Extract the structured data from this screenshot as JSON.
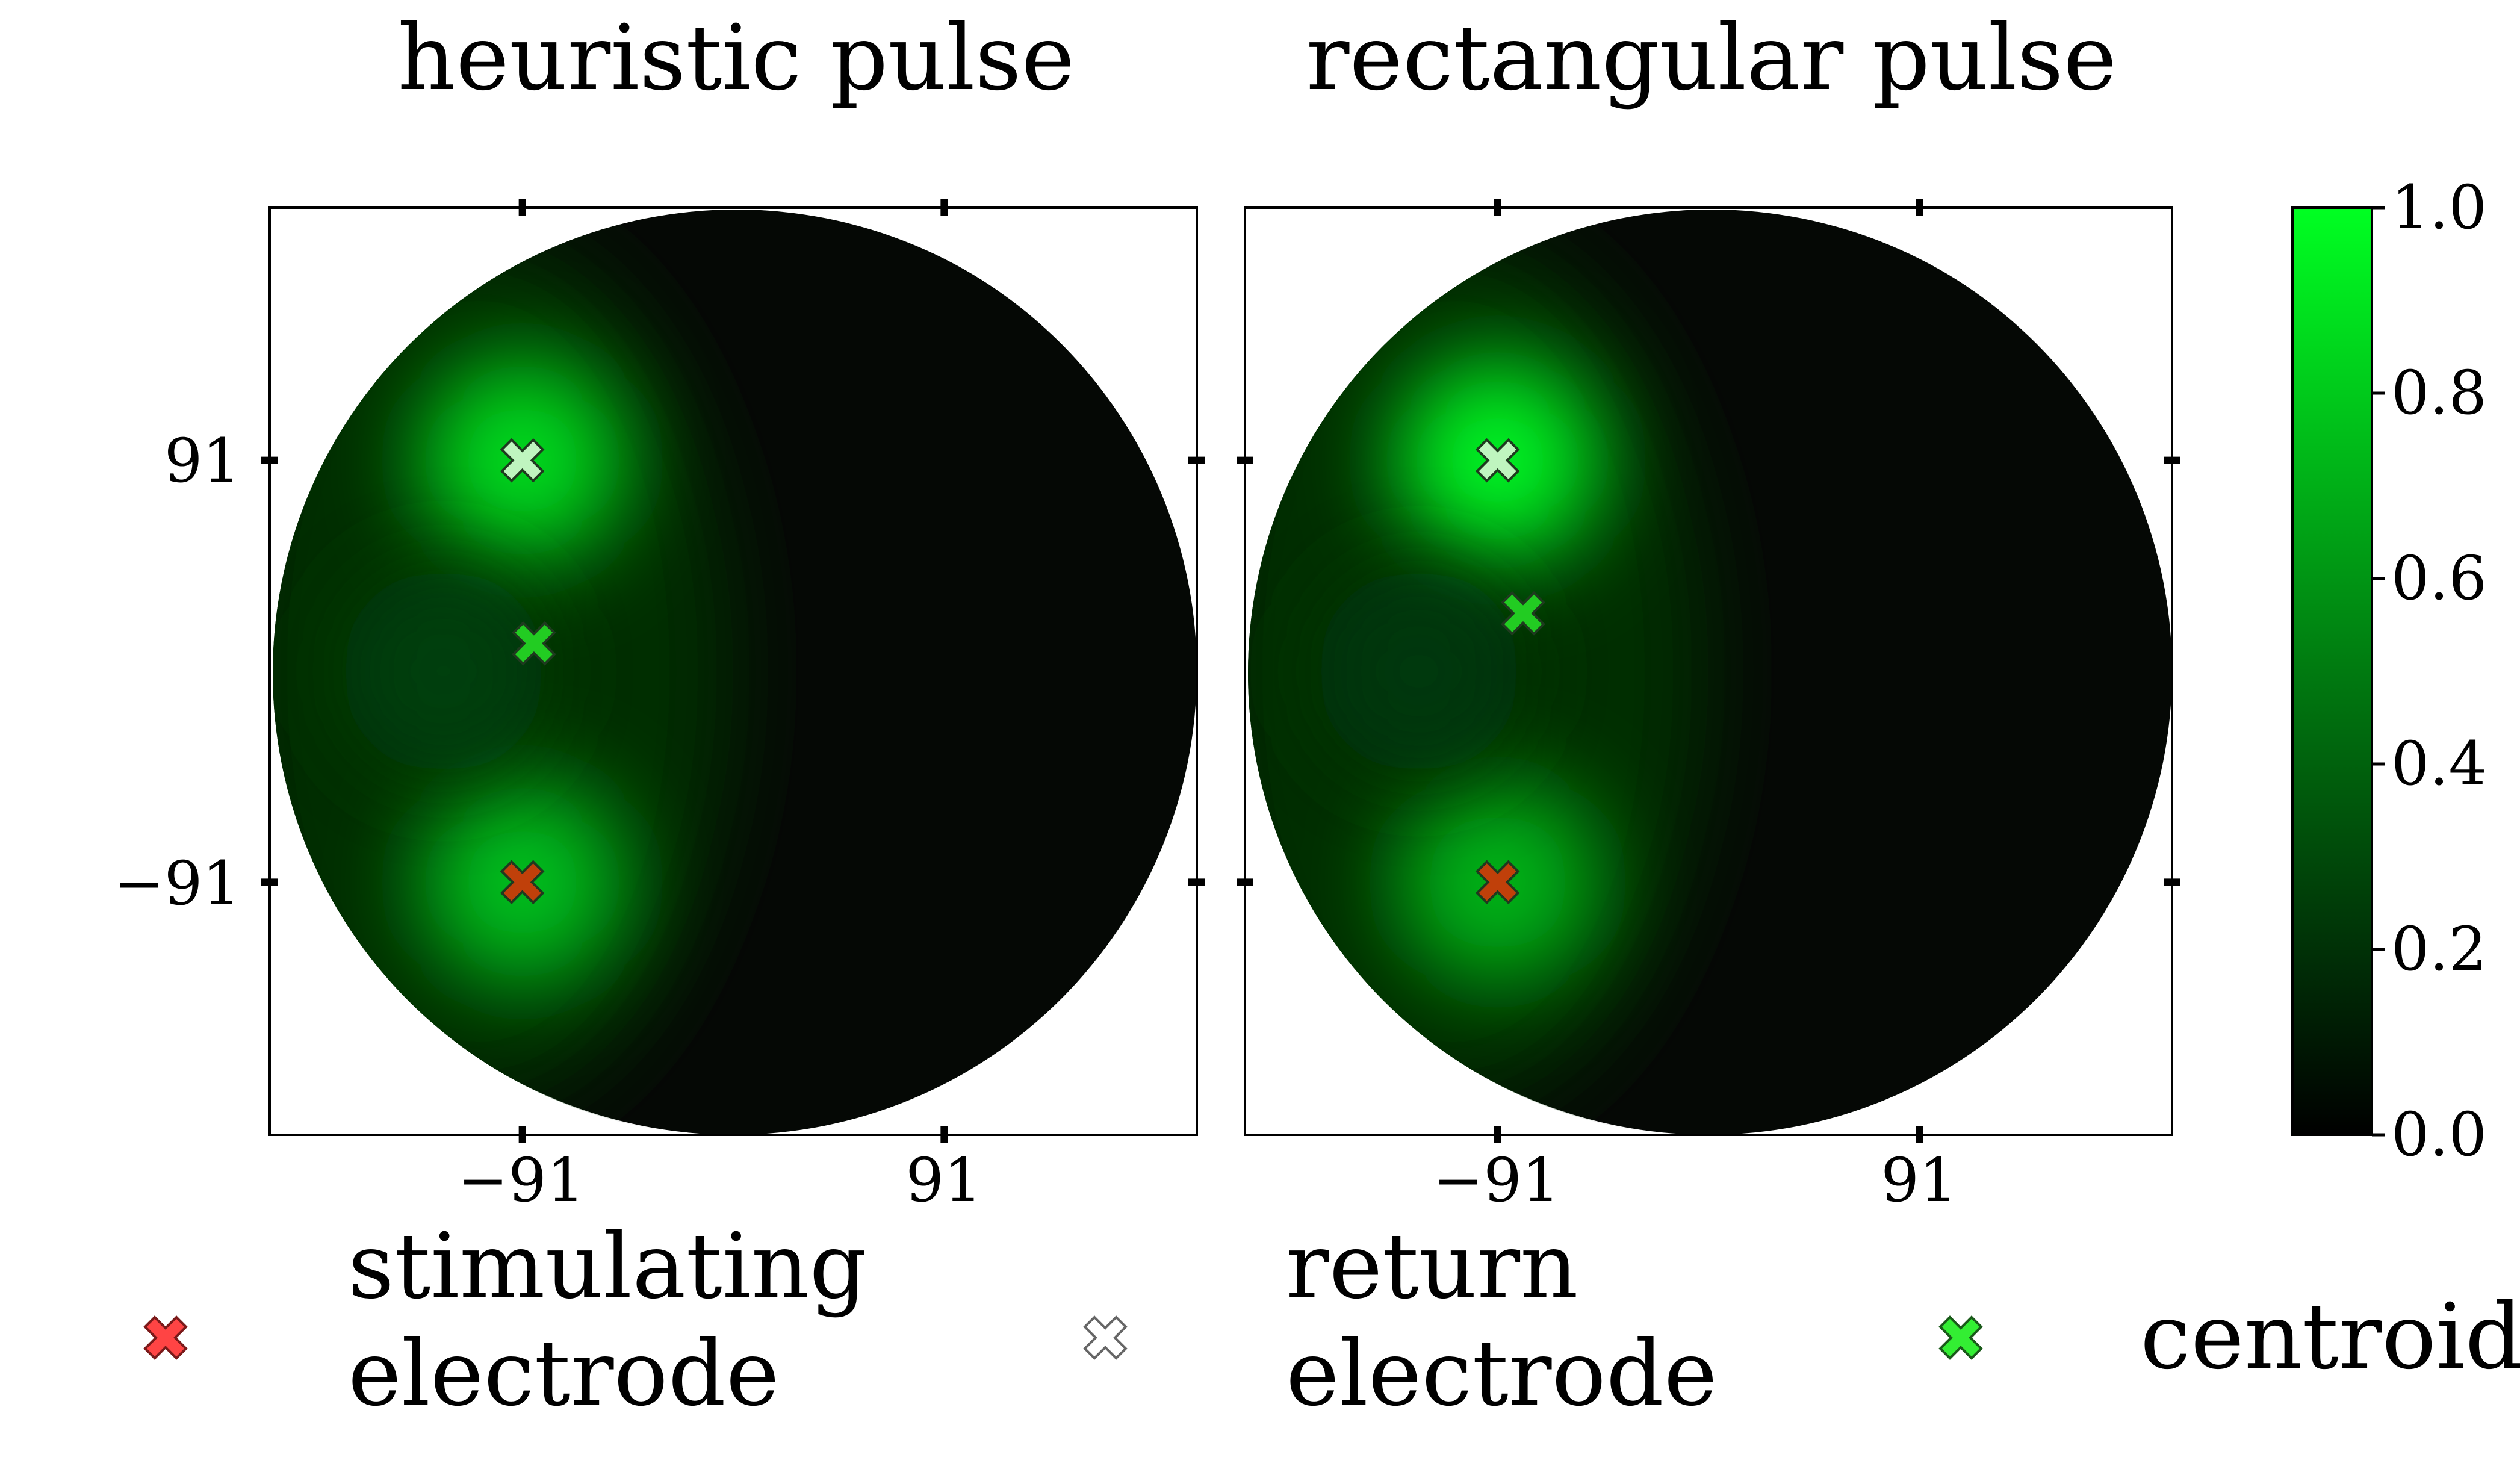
{
  "chart_data": [
    {
      "type": "heatmap",
      "title": "heuristic pulse",
      "xlabel": "",
      "ylabel": "",
      "xticks": [
        -91,
        91
      ],
      "yticks": [
        91,
        -91
      ],
      "xtick_labels": [
        "−91",
        "91"
      ],
      "ytick_labels": [
        "91",
        "−91"
      ],
      "xlim": [
        -200,
        200
      ],
      "ylim": [
        -200,
        200
      ],
      "field_shape": "circle",
      "field_radius": 200,
      "grid": false,
      "hotspots": [
        {
          "x": -91,
          "y": 91,
          "value": 0.85
        },
        {
          "x": -91,
          "y": -91,
          "value": 0.75
        },
        {
          "x": -125,
          "y": 0,
          "value": 0.25
        }
      ],
      "markers": [
        {
          "kind": "return",
          "x": -91,
          "y": 91
        },
        {
          "kind": "centroid",
          "x": -86,
          "y": 12
        },
        {
          "kind": "stimulating",
          "x": -91,
          "y": -91
        }
      ]
    },
    {
      "type": "heatmap",
      "title": "rectangular pulse",
      "xlabel": "",
      "ylabel": "",
      "xticks": [
        -91,
        91
      ],
      "yticks": [
        91,
        -91
      ],
      "xtick_labels": [
        "−91",
        "91"
      ],
      "ytick_labels": [
        "",
        ""
      ],
      "xlim": [
        -200,
        200
      ],
      "ylim": [
        -200,
        200
      ],
      "field_shape": "circle",
      "field_radius": 200,
      "grid": false,
      "hotspots": [
        {
          "x": -91,
          "y": 91,
          "value": 0.95
        },
        {
          "x": -91,
          "y": -91,
          "value": 0.7
        },
        {
          "x": -125,
          "y": 0,
          "value": 0.22
        }
      ],
      "markers": [
        {
          "kind": "return",
          "x": -91,
          "y": 91
        },
        {
          "kind": "centroid",
          "x": -80,
          "y": 25
        },
        {
          "kind": "stimulating",
          "x": -91,
          "y": -91
        }
      ]
    }
  ],
  "colorbar": {
    "min": 0.0,
    "max": 1.0,
    "ticks": [
      "1.0",
      "0.8",
      "0.6",
      "0.4",
      "0.2",
      "0.0"
    ],
    "color_low": "#000000",
    "color_high": "#00ff22"
  },
  "legend": {
    "placement": "bottom",
    "items": [
      {
        "kind": "stimulating",
        "line1": "stimulating",
        "line2": "electrode",
        "color": "#ff4444"
      },
      {
        "kind": "return",
        "line1": "return",
        "line2": "electrode",
        "color": "#ffffff"
      },
      {
        "kind": "centroid",
        "line1": "centroid",
        "line2": "",
        "color": "#33ee33"
      }
    ]
  },
  "marker_colors": {
    "stimulating": "#c0400a",
    "return": "#bff5bf",
    "centroid": "#22cc22"
  }
}
